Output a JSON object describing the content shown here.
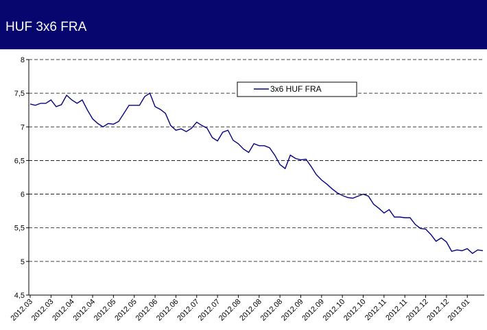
{
  "chart_data": {
    "type": "line",
    "title": "HUF 3x6 FRA",
    "categories": [
      "2012.03",
      null,
      null,
      null,
      "2012.03",
      null,
      null,
      null,
      "2012.04",
      null,
      null,
      null,
      "2012.04",
      null,
      null,
      null,
      "2012.05",
      null,
      null,
      null,
      "2012.05",
      null,
      null,
      null,
      "2012.06",
      null,
      null,
      null,
      "2012.06",
      null,
      null,
      null,
      "2012.07",
      null,
      null,
      null,
      "2012.07",
      null,
      null,
      null,
      "2012.08",
      null,
      null,
      null,
      "2012.08",
      null,
      null,
      null,
      "2012.08",
      null,
      null,
      null,
      "2012.09",
      null,
      null,
      null,
      "2012.09",
      null,
      null,
      null,
      "2012.10",
      null,
      null,
      null,
      "2012.10",
      null,
      null,
      null,
      "2012.11",
      null,
      null,
      null,
      "2012.11",
      null,
      null,
      null,
      "2012.12",
      null,
      null,
      null,
      "2012.12",
      null,
      null,
      null,
      "2013.01",
      null,
      null,
      null
    ],
    "series": [
      {
        "name": "3x6 HUF FRA",
        "color": "#000080",
        "values": [
          7.34,
          7.32,
          7.35,
          7.35,
          7.4,
          7.3,
          7.33,
          7.47,
          7.4,
          7.35,
          7.4,
          7.25,
          7.12,
          7.05,
          7.0,
          7.05,
          7.04,
          7.08,
          7.2,
          7.32,
          7.32,
          7.32,
          7.45,
          7.5,
          7.3,
          7.26,
          7.2,
          7.02,
          6.95,
          6.97,
          6.93,
          6.98,
          7.07,
          7.02,
          6.98,
          6.84,
          6.79,
          6.92,
          6.95,
          6.8,
          6.75,
          6.67,
          6.62,
          6.75,
          6.72,
          6.72,
          6.69,
          6.58,
          6.44,
          6.38,
          6.58,
          6.53,
          6.51,
          6.52,
          6.41,
          6.29,
          6.21,
          6.15,
          6.08,
          6.02,
          5.98,
          5.95,
          5.94,
          5.97,
          6.0,
          5.97,
          5.85,
          5.79,
          5.72,
          5.77,
          5.66,
          5.66,
          5.65,
          5.65,
          5.55,
          5.49,
          5.48,
          5.4,
          5.3,
          5.35,
          5.29,
          5.15,
          5.17,
          5.16,
          5.19,
          5.12,
          5.17,
          5.16
        ]
      }
    ],
    "ylim": [
      4.5,
      8
    ],
    "yticks": [
      {
        "value": 4.5,
        "label": "4,5"
      },
      5,
      {
        "value": 5.5,
        "label": "5,5"
      },
      6,
      {
        "value": 6.5,
        "label": "6,5"
      },
      7,
      {
        "value": 7.5,
        "label": "7,5"
      },
      8
    ],
    "grid": true,
    "legend": "top"
  }
}
